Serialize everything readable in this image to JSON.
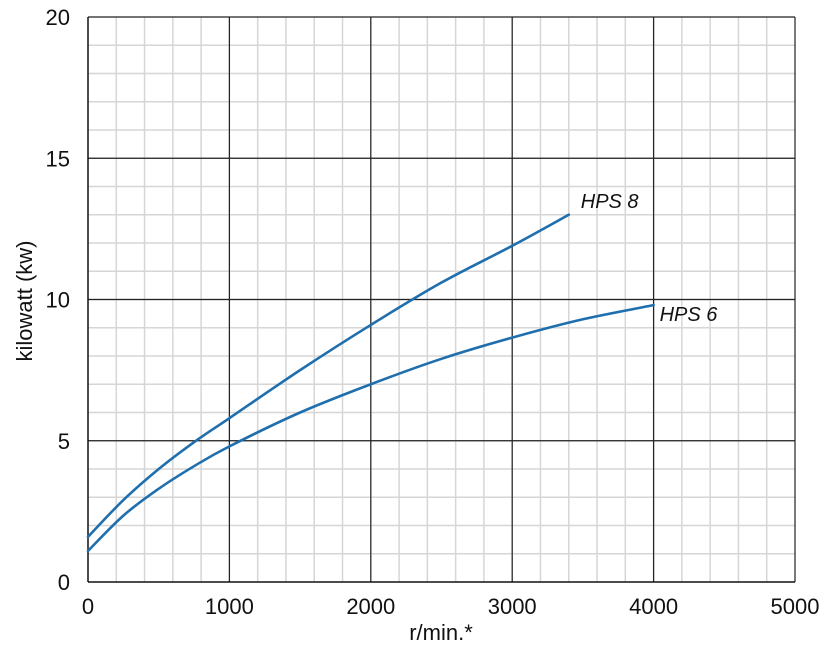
{
  "chart_data": {
    "type": "line",
    "title": "",
    "xlabel": "r/min.*",
    "ylabel": "kilowatt (kw)",
    "xlim": [
      0,
      5000
    ],
    "ylim": [
      0,
      20
    ],
    "x_ticks": [
      "0",
      "1000",
      "2000",
      "3000",
      "4000",
      "5000"
    ],
    "y_ticks": [
      "0",
      "5",
      "10",
      "15",
      "20"
    ],
    "x_minor_step": 200,
    "y_minor_step": 1,
    "grid": true,
    "line_color": "#1f6fae",
    "series": [
      {
        "name": "HPS 8",
        "x": [
          0,
          250,
          500,
          750,
          1000,
          1500,
          2000,
          2500,
          3000,
          3400
        ],
        "y": [
          1.6,
          2.9,
          4.0,
          4.95,
          5.8,
          7.5,
          9.1,
          10.6,
          11.9,
          13.0
        ]
      },
      {
        "name": "HPS 6",
        "x": [
          0,
          250,
          500,
          750,
          1000,
          1500,
          2000,
          2500,
          3000,
          3500,
          4000
        ],
        "y": [
          1.1,
          2.35,
          3.3,
          4.1,
          4.8,
          6.0,
          7.0,
          7.9,
          8.65,
          9.3,
          9.8
        ]
      }
    ]
  }
}
